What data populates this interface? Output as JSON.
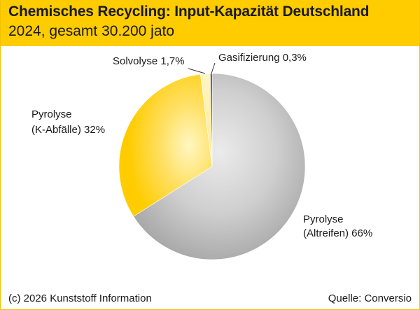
{
  "header": {
    "title": "Chemisches Recycling: Input-Kapazität Deutschland",
    "subtitle": "2024, gesamt 30.200 jato"
  },
  "footer": {
    "copyright": "(c) 2026 Kunststoff Information",
    "source": "Quelle: Conversio"
  },
  "colors": {
    "header_bg": "#ffcc00",
    "pyrolyse_altreifen": "#c8c8c8",
    "pyrolyse_kabfaelle": "#ffd21a",
    "solvolyse": "#fff0a0",
    "gasifizierung": "#2a2a2a"
  },
  "chart_data": {
    "type": "pie",
    "title": "Chemisches Recycling: Input-Kapazität Deutschland",
    "subtitle": "2024, gesamt 30.200 jato",
    "slices": [
      {
        "key": "pyrolyse_altreifen",
        "value": 66,
        "label_lines": [
          "Pyrolyse",
          "(Altreifen) 66%"
        ]
      },
      {
        "key": "pyrolyse_kabfaelle",
        "value": 32,
        "label_lines": [
          "Pyrolyse",
          "(K-Abfälle) 32%"
        ]
      },
      {
        "key": "solvolyse",
        "value": 1.7,
        "label_lines": [
          "Solvolyse 1,7%"
        ]
      },
      {
        "key": "gasifizierung",
        "value": 0.3,
        "label_lines": [
          "Gasifizierung 0,3%"
        ]
      }
    ]
  }
}
